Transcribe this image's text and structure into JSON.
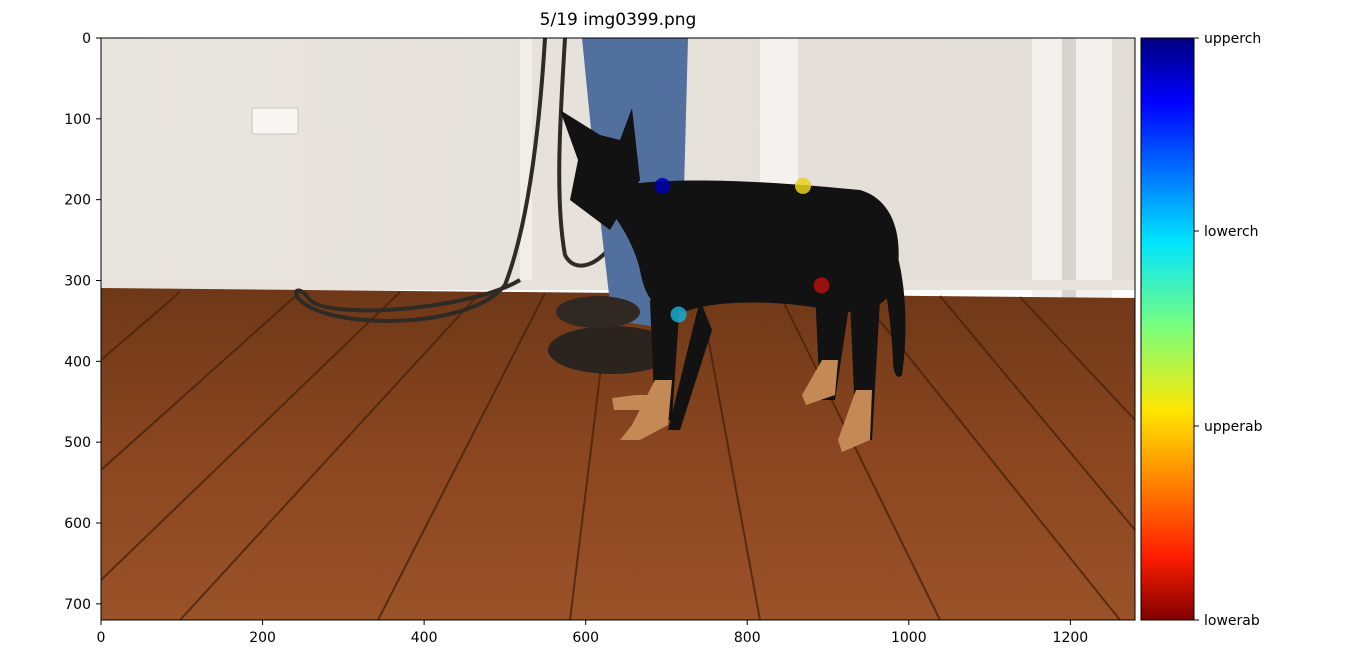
{
  "chart_data": {
    "type": "scatter",
    "title": "5/19 img0399.png",
    "xlabel": "",
    "ylabel": "",
    "xlim": [
      0,
      1280
    ],
    "ylim": [
      720,
      0
    ],
    "x_ticks": [
      0,
      200,
      400,
      600,
      800,
      1000,
      1200
    ],
    "y_ticks": [
      0,
      100,
      200,
      300,
      400,
      500,
      600,
      700
    ],
    "grid": false,
    "series": [
      {
        "name": "upperch",
        "color": "#0000b0",
        "x": [
          695
        ],
        "y": [
          183
        ]
      },
      {
        "name": "lowerch",
        "color": "#19aed0",
        "x": [
          715
        ],
        "y": [
          342
        ]
      },
      {
        "name": "upperab",
        "color": "#e8d21a",
        "x": [
          869
        ],
        "y": [
          183
        ]
      },
      {
        "name": "lowerab",
        "color": "#b21010",
        "x": [
          892
        ],
        "y": [
          306
        ]
      }
    ],
    "colorbar": {
      "labels": [
        "upperch",
        "lowerch",
        "upperab",
        "lowerab"
      ],
      "colormap": "jet_reversed"
    }
  }
}
